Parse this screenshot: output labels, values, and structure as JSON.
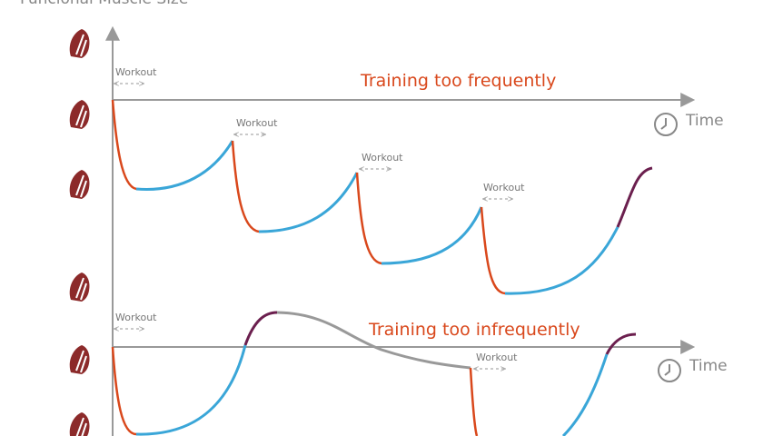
{
  "title": "Funcional Muscle Size",
  "sections": [
    {
      "heading": "Training too frequently",
      "time_label": "Time",
      "workouts": [
        "Workout",
        "Workout",
        "Workout",
        "Workout"
      ]
    },
    {
      "heading": "Training too infrequently",
      "time_label": "Time",
      "workouts": [
        "Workout",
        "Workout"
      ]
    }
  ]
}
